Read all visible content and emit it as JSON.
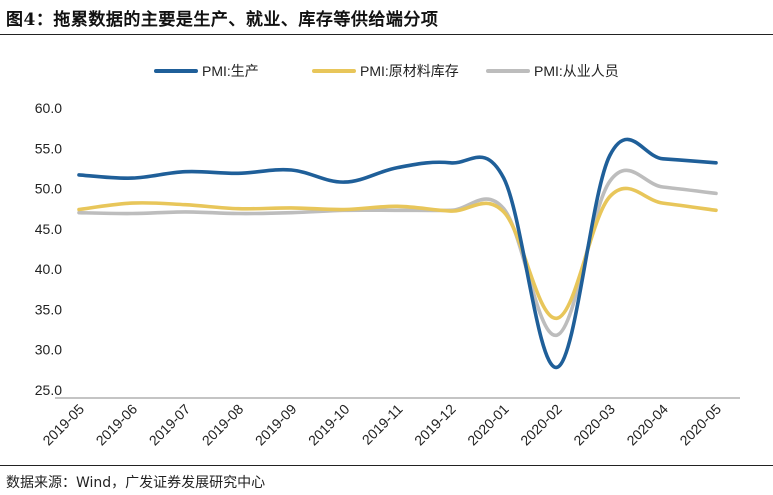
{
  "figure": {
    "title": "图4：拖累数据的主要是生产、就业、库存等供给端分项",
    "source": "数据来源：Wind，广发证券发展研究中心"
  },
  "chart_data": {
    "type": "line",
    "categories": [
      "2019-05",
      "2019-06",
      "2019-07",
      "2019-08",
      "2019-09",
      "2019-10",
      "2019-11",
      "2019-12",
      "2020-01",
      "2020-02",
      "2020-03",
      "2020-04",
      "2020-05"
    ],
    "series": [
      {
        "name": "PMI:生产",
        "color": "#1f5f99",
        "values": [
          51.7,
          51.3,
          52.1,
          51.9,
          52.3,
          50.8,
          52.6,
          53.2,
          51.3,
          27.8,
          54.1,
          53.7,
          53.2
        ]
      },
      {
        "name": "PMI:原材料库存",
        "color": "#e8c65a",
        "values": [
          47.4,
          48.2,
          48.0,
          47.5,
          47.6,
          47.4,
          47.8,
          47.2,
          47.1,
          33.9,
          49.0,
          48.2,
          47.3
        ]
      },
      {
        "name": "PMI:从业人员",
        "color": "#bdbdbd",
        "values": [
          47.0,
          46.9,
          47.1,
          46.9,
          47.0,
          47.3,
          47.3,
          47.3,
          47.5,
          31.8,
          50.9,
          50.2,
          49.4
        ]
      }
    ],
    "yticks": [
      "60.0",
      "55.0",
      "50.0",
      "45.0",
      "40.0",
      "35.0",
      "30.0",
      "25.0"
    ],
    "ylim": [
      25,
      60
    ],
    "grid": false,
    "legend": "top-center"
  }
}
